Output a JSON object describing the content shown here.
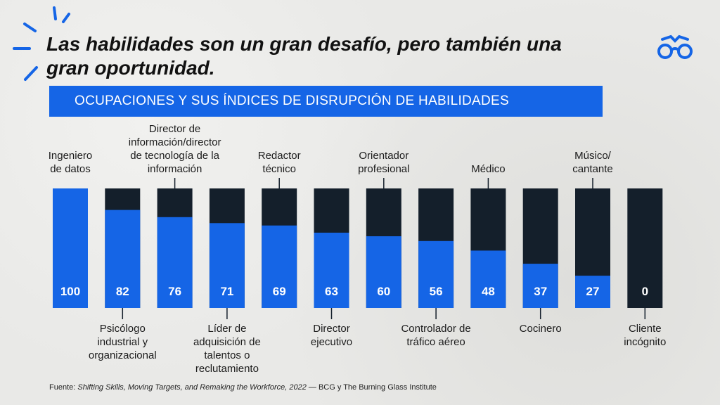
{
  "title": "Las habilidades son un gran desafío, pero también una gran oportunidad.",
  "subtitle": "OCUPACIONES Y SUS ÍNDICES DE DISRUPCIÓN DE HABILIDADES",
  "source": {
    "prefix": "Fuente: ",
    "italic": "Shifting Skills, Moving Targets, and Remaking the Workforce, 2022",
    "suffix": " — BCG y The Burning Glass Institute"
  },
  "icons": [
    "glasses-logo-icon",
    "sunburst-decoration-icon"
  ],
  "colors": {
    "blue": "#1565e6",
    "dark": "#141f2b"
  },
  "chart_data": {
    "type": "bar",
    "stacked": true,
    "ylim": [
      0,
      100
    ],
    "categories": [
      "Ingeniero de datos",
      "Psicólogo industrial y organizacional",
      "Director de información/director de tecnología de la información",
      "Líder de adquisición de talentos o reclutamiento",
      "Redactor técnico",
      "Director ejecutivo",
      "Orientador profesional",
      "Controlador de tráfico aéreo",
      "Médico",
      "Cocinero",
      "Músico/ cantante",
      "Cliente incógnito"
    ],
    "label_lines": [
      [
        "Ingeniero",
        "de datos"
      ],
      [
        "Psicólogo",
        "industrial y",
        "organizacional"
      ],
      [
        "Director de",
        "información/director",
        "de tecnología de la",
        "información"
      ],
      [
        "Líder de",
        "adquisición de",
        "talentos o",
        "reclutamiento"
      ],
      [
        "Redactor",
        "técnico"
      ],
      [
        "Director",
        "ejecutivo"
      ],
      [
        "Orientador",
        "profesional"
      ],
      [
        "Controlador de",
        "tráfico aéreo"
      ],
      [
        "Médico"
      ],
      [
        "Cocinero"
      ],
      [
        "Músico/",
        "cantante"
      ],
      [
        "Cliente",
        "incógnito"
      ]
    ],
    "label_position": [
      "top",
      "bottom",
      "top",
      "bottom",
      "top",
      "bottom",
      "top",
      "bottom",
      "top",
      "bottom",
      "top",
      "bottom"
    ],
    "values": [
      100,
      82,
      76,
      71,
      69,
      63,
      60,
      56,
      48,
      37,
      27,
      0
    ]
  }
}
